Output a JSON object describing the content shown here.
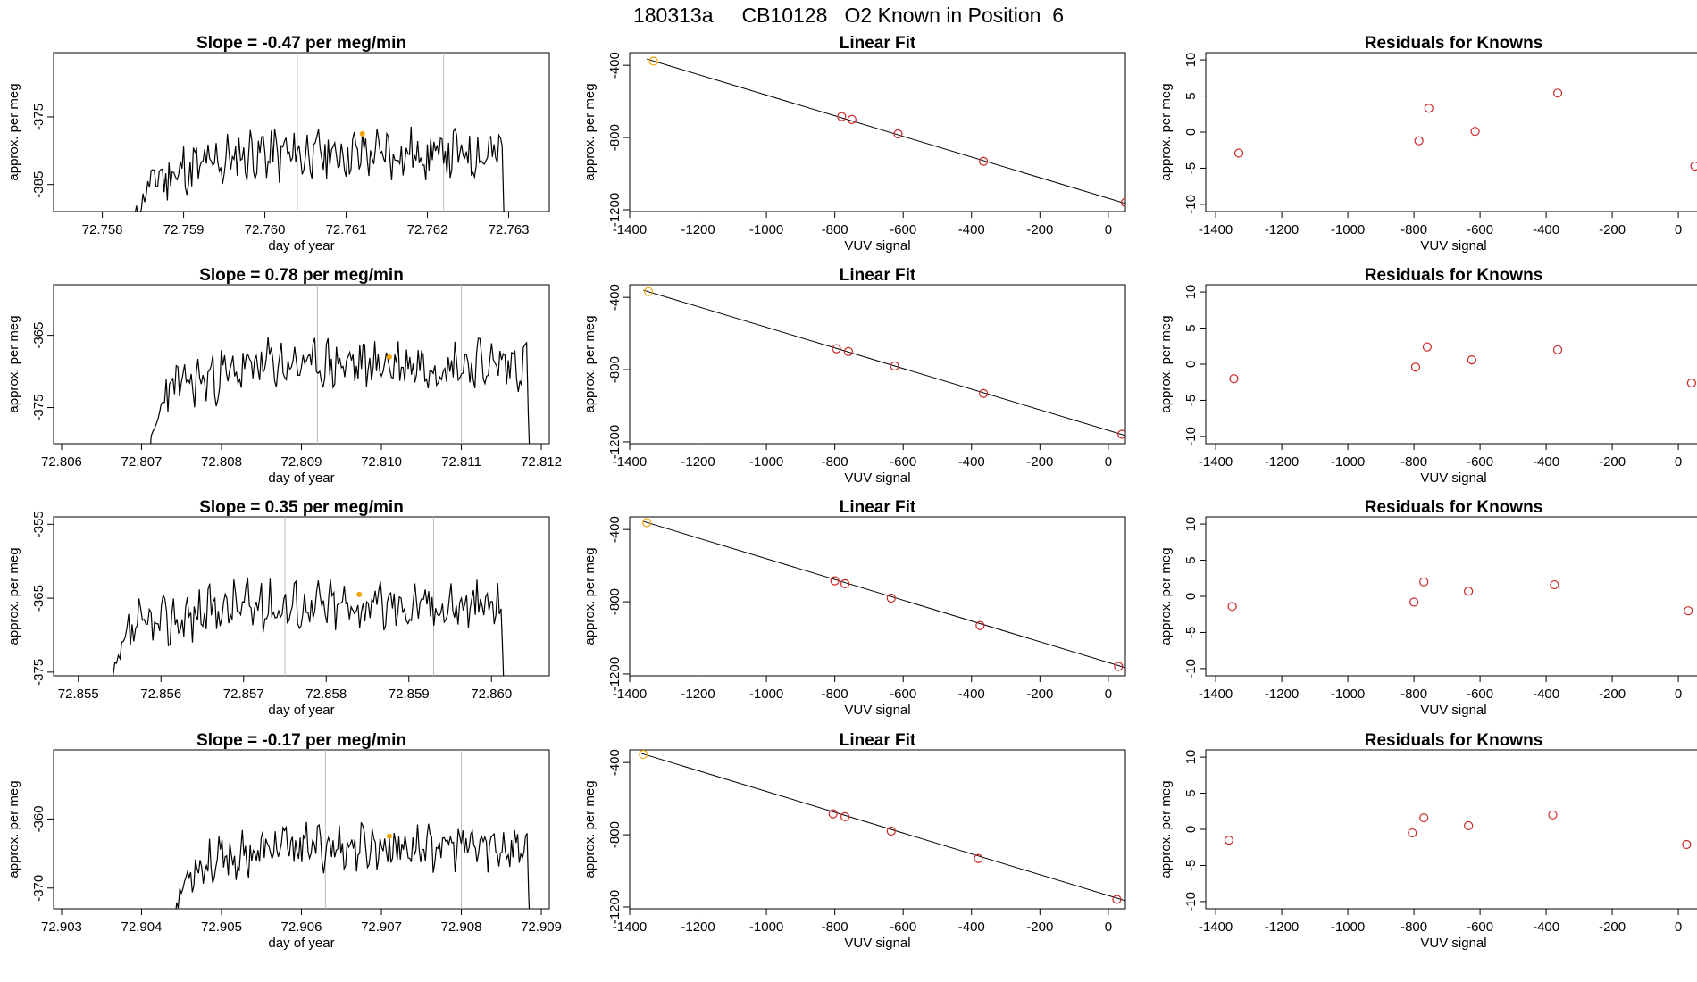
{
  "title": "180313a     CB10128   O2 Known in Position  6",
  "colors": {
    "trace": "#000000",
    "vline": "#bbbbbb",
    "point": "#cd2626",
    "highlight": "#f0a500",
    "axis": "#000000"
  },
  "chart_data": [
    {
      "type": "line",
      "title": "Slope =  -0.47  per meg/min",
      "xlabel": "day of year",
      "ylabel": "approx. per meg",
      "xlim": [
        72.7574,
        72.7635
      ],
      "ylim": [
        -389,
        -365.5
      ],
      "xticks": [
        "72.758",
        "72.759",
        "72.760",
        "72.761",
        "72.762",
        "72.763"
      ],
      "yticks": [
        "-385",
        "-375"
      ],
      "start": 72.7584,
      "end": 72.763,
      "base": -380.5,
      "amp": 3.2,
      "seed": 11,
      "vlines": [
        72.7604,
        72.7622
      ],
      "highlight": {
        "x": 72.7612,
        "y": -377.5
      }
    },
    {
      "type": "scatter",
      "title": "Linear Fit",
      "xlabel": "VUV signal",
      "ylabel": "approx. per meg",
      "xlim": [
        -1400,
        50
      ],
      "ylim": [
        -1210,
        -330
      ],
      "xticks": [
        "-1400",
        "-1200",
        "-1000",
        "-800",
        "-600",
        "-400",
        "-200",
        "0"
      ],
      "yticks": [
        "-400",
        "-800",
        "-1200"
      ],
      "x": [
        -1330,
        -780,
        -750,
        -615,
        -365,
        50
      ],
      "y": [
        -377,
        -684,
        -700,
        -780,
        -932,
        -1160
      ],
      "fit": [
        [
          -1350,
          -365
        ],
        [
          50,
          -1165
        ]
      ],
      "highlight_index": 0
    },
    {
      "type": "scatter",
      "title": "Residuals for Knowns",
      "xlabel": "VUV signal",
      "ylabel": "approx. per meg",
      "xlim": [
        -1430,
        70
      ],
      "ylim": [
        -11,
        11
      ],
      "xticks": [
        "-1400",
        "-1200",
        "-1000",
        "-800",
        "-600",
        "-400",
        "-200",
        "0"
      ],
      "yticks": [
        "10",
        "5",
        "0",
        "-5",
        "-10"
      ],
      "x": [
        -1330,
        -785,
        -755,
        -615,
        -365,
        50
      ],
      "y": [
        -2.9,
        -1.2,
        3.3,
        0.1,
        5.4,
        -4.7
      ]
    },
    {
      "type": "line",
      "title": "Slope =  0.78  per meg/min",
      "xlabel": "day of year",
      "ylabel": "approx. per meg",
      "xlim": [
        72.8059,
        72.8121
      ],
      "ylim": [
        -380,
        -358
      ],
      "xticks": [
        "72.806",
        "72.807",
        "72.808",
        "72.809",
        "72.810",
        "72.811",
        "72.812"
      ],
      "yticks": [
        "-365",
        "-375"
      ],
      "start": 72.8071,
      "end": 72.8119,
      "base": -369,
      "amp": 2.8,
      "seed": 23,
      "vlines": [
        72.8092,
        72.811
      ],
      "highlight": {
        "x": 72.8101,
        "y": -368
      }
    },
    {
      "type": "scatter",
      "title": "Linear Fit",
      "xlabel": "VUV signal",
      "ylabel": "approx. per meg",
      "xlim": [
        -1400,
        50
      ],
      "ylim": [
        -1210,
        -330
      ],
      "xticks": [
        "-1400",
        "-1200",
        "-1000",
        "-800",
        "-600",
        "-400",
        "-200",
        "0"
      ],
      "yticks": [
        "-400",
        "-800",
        "-1200"
      ],
      "x": [
        -1345,
        -795,
        -760,
        -625,
        -365,
        40
      ],
      "y": [
        -368,
        -684,
        -700,
        -780,
        -932,
        -1158
      ],
      "fit": [
        [
          -1360,
          -360
        ],
        [
          50,
          -1165
        ]
      ],
      "highlight_index": 0
    },
    {
      "type": "scatter",
      "title": "Residuals for Knowns",
      "xlabel": "VUV signal",
      "ylabel": "approx. per meg",
      "xlim": [
        -1430,
        70
      ],
      "ylim": [
        -11,
        11
      ],
      "xticks": [
        "-1400",
        "-1200",
        "-1000",
        "-800",
        "-600",
        "-400",
        "-200",
        "0"
      ],
      "yticks": [
        "10",
        "5",
        "0",
        "-5",
        "-10"
      ],
      "x": [
        -1345,
        -795,
        -760,
        -625,
        -365,
        40
      ],
      "y": [
        -2.0,
        -0.4,
        2.4,
        0.6,
        2.0,
        -2.6
      ]
    },
    {
      "type": "line",
      "title": "Slope =  0.35  per meg/min",
      "xlabel": "day of year",
      "ylabel": "approx. per meg",
      "xlim": [
        72.8547,
        72.8607
      ],
      "ylim": [
        -375.5,
        -354
      ],
      "xticks": [
        "72.855",
        "72.856",
        "72.857",
        "72.858",
        "72.859",
        "72.860"
      ],
      "yticks": [
        "-355",
        "-365",
        "-375"
      ],
      "start": 72.8554,
      "end": 72.8602,
      "base": -366,
      "amp": 2.8,
      "seed": 37,
      "vlines": [
        72.8575,
        72.8593
      ],
      "highlight": {
        "x": 72.8584,
        "y": -364.5
      }
    },
    {
      "type": "scatter",
      "title": "Linear Fit",
      "xlabel": "VUV signal",
      "ylabel": "approx. per meg",
      "xlim": [
        -1400,
        50
      ],
      "ylim": [
        -1210,
        -330
      ],
      "xticks": [
        "-1400",
        "-1200",
        "-1000",
        "-800",
        "-600",
        "-400",
        "-200",
        "0"
      ],
      "yticks": [
        "-400",
        "-800",
        "-1200"
      ],
      "x": [
        -1350,
        -800,
        -770,
        -635,
        -375,
        30
      ],
      "y": [
        -362,
        -684,
        -700,
        -780,
        -932,
        -1158
      ],
      "fit": [
        [
          -1360,
          -355
        ],
        [
          50,
          -1165
        ]
      ],
      "highlight_index": 0
    },
    {
      "type": "scatter",
      "title": "Residuals for Knowns",
      "xlabel": "VUV signal",
      "ylabel": "approx. per meg",
      "xlim": [
        -1430,
        70
      ],
      "ylim": [
        -11,
        11
      ],
      "xticks": [
        "-1400",
        "-1200",
        "-1000",
        "-800",
        "-600",
        "-400",
        "-200",
        "0"
      ],
      "yticks": [
        "10",
        "5",
        "0",
        "-5",
        "-10"
      ],
      "x": [
        -1350,
        -800,
        -770,
        -635,
        -375,
        30
      ],
      "y": [
        -1.4,
        -0.8,
        2.0,
        0.7,
        1.6,
        -2.0
      ]
    },
    {
      "type": "line",
      "title": "Slope =  -0.17  per meg/min",
      "xlabel": "day of year",
      "ylabel": "approx. per meg",
      "xlim": [
        72.9029,
        72.9091
      ],
      "ylim": [
        -373,
        -350
      ],
      "xticks": [
        "72.903",
        "72.904",
        "72.905",
        "72.906",
        "72.907",
        "72.908",
        "72.909"
      ],
      "yticks": [
        "-360",
        "-370"
      ],
      "start": 72.9044,
      "end": 72.9089,
      "base": -364,
      "amp": 2.6,
      "seed": 53,
      "vlines": [
        72.9063,
        72.908
      ],
      "highlight": {
        "x": 72.9071,
        "y": -362.5
      }
    },
    {
      "type": "scatter",
      "title": "Linear Fit",
      "xlabel": "VUV signal",
      "ylabel": "approx. per meg",
      "xlim": [
        -1400,
        50
      ],
      "ylim": [
        -1210,
        -330
      ],
      "xticks": [
        "-1400",
        "-1200",
        "-1000",
        "-800",
        "-600",
        "-400",
        "-200",
        "0"
      ],
      "yticks": [
        "-400",
        "-800",
        "-1200"
      ],
      "x": [
        -1360,
        -805,
        -770,
        -635,
        -380,
        25
      ],
      "y": [
        -355,
        -684,
        -700,
        -780,
        -932,
        -1158
      ],
      "fit": [
        [
          -1365,
          -350
        ],
        [
          50,
          -1165
        ]
      ],
      "highlight_index": 0
    },
    {
      "type": "scatter",
      "title": "Residuals for Knowns",
      "xlabel": "VUV signal",
      "ylabel": "approx. per meg",
      "xlim": [
        -1430,
        70
      ],
      "ylim": [
        -11,
        11
      ],
      "xticks": [
        "-1400",
        "-1200",
        "-1000",
        "-800",
        "-600",
        "-400",
        "-200",
        "0"
      ],
      "yticks": [
        "10",
        "5",
        "0",
        "-5",
        "-10"
      ],
      "x": [
        -1360,
        -805,
        -770,
        -635,
        -380,
        25
      ],
      "y": [
        -1.5,
        -0.5,
        1.6,
        0.5,
        2.0,
        -2.1
      ]
    }
  ]
}
